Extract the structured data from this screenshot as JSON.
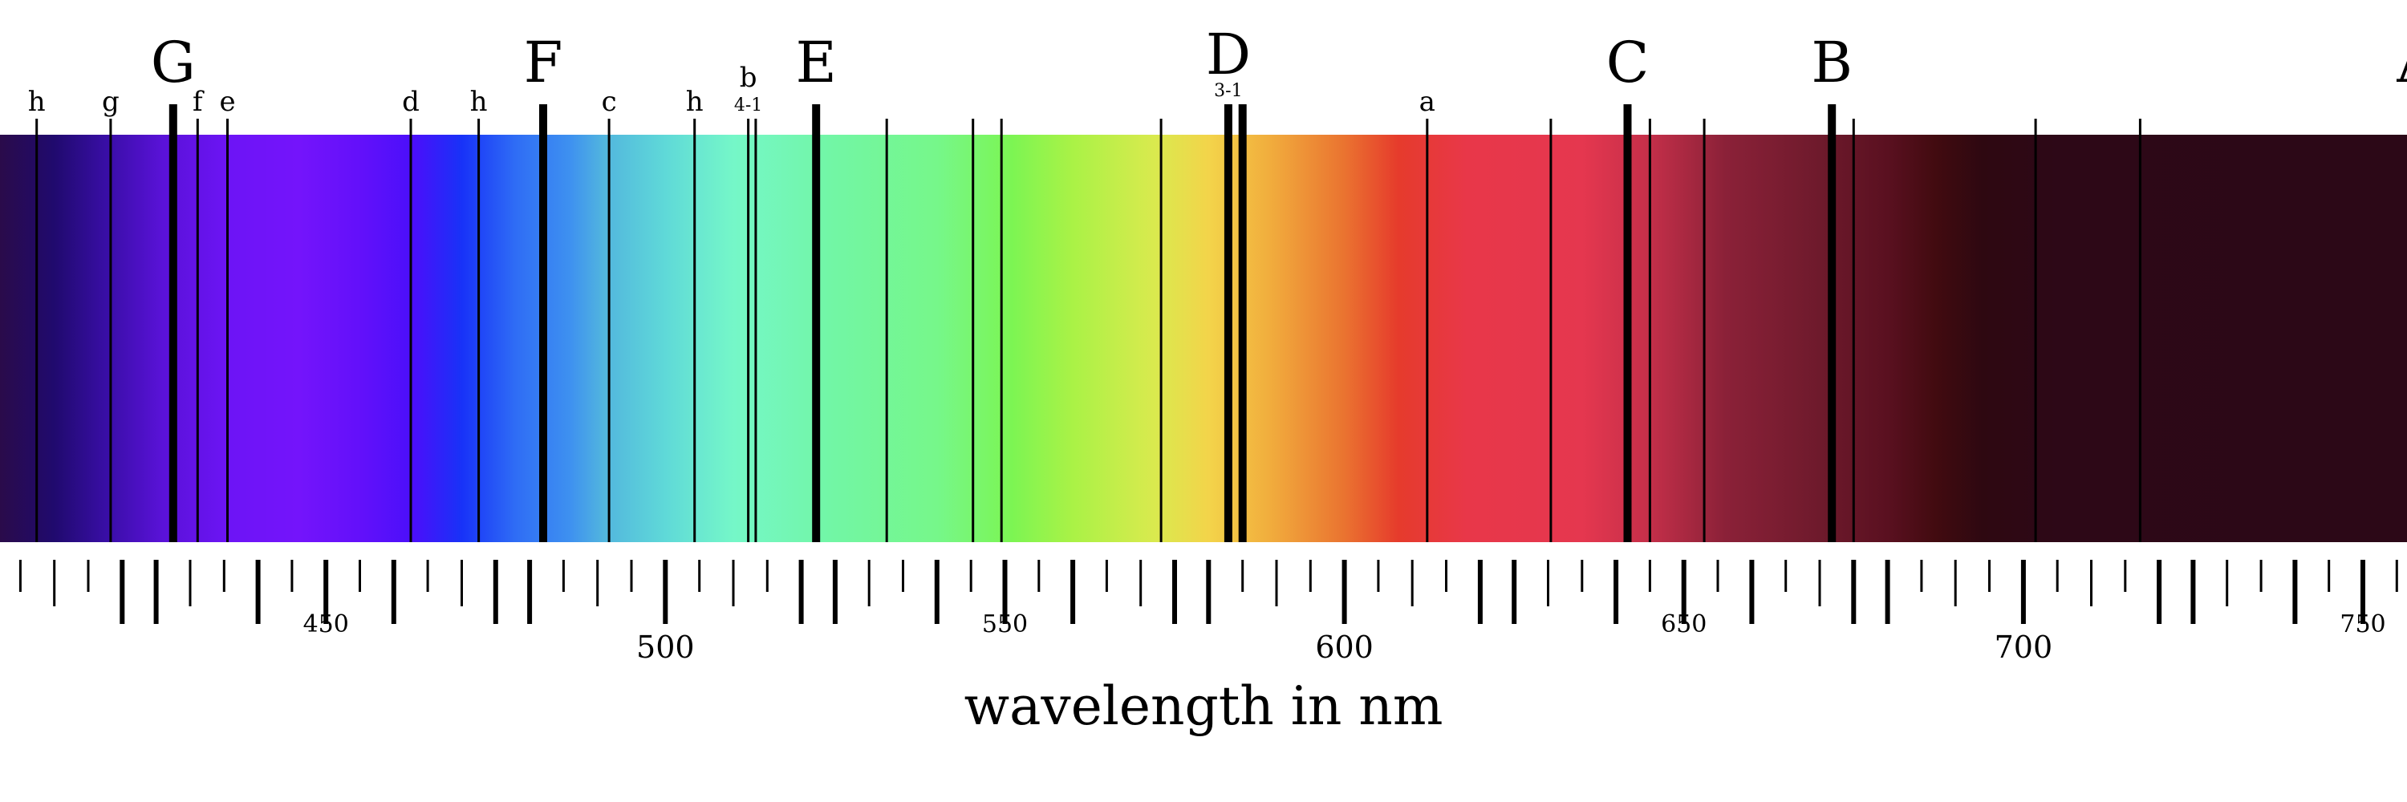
{
  "spectrum": {
    "x_unit": "nm",
    "x_range": [
      402,
      756.5
    ],
    "gradient_stops": [
      {
        "nm": 402,
        "color": "#2a0b4a"
      },
      {
        "nm": 410,
        "color": "#200a6e"
      },
      {
        "nm": 418,
        "color": "#3a0ea8"
      },
      {
        "nm": 426,
        "color": "#5a12d8"
      },
      {
        "nm": 436,
        "color": "#6d14f6"
      },
      {
        "nm": 446,
        "color": "#7414fb"
      },
      {
        "nm": 455,
        "color": "#6310fa"
      },
      {
        "nm": 463,
        "color": "#4a0ffa"
      },
      {
        "nm": 470,
        "color": "#1832f8"
      },
      {
        "nm": 478,
        "color": "#2f6df5"
      },
      {
        "nm": 486,
        "color": "#3e91f0"
      },
      {
        "nm": 491,
        "color": "#52b6de"
      },
      {
        "nm": 500,
        "color": "#5fd9d8"
      },
      {
        "nm": 510,
        "color": "#75f7c8"
      },
      {
        "nm": 525,
        "color": "#72f6a4"
      },
      {
        "nm": 540,
        "color": "#76f78a"
      },
      {
        "nm": 551,
        "color": "#7cf553"
      },
      {
        "nm": 560,
        "color": "#aaf246"
      },
      {
        "nm": 572,
        "color": "#d9ea4e"
      },
      {
        "nm": 580,
        "color": "#f3d44a"
      },
      {
        "nm": 589,
        "color": "#f1ad3d"
      },
      {
        "nm": 600,
        "color": "#ea7330"
      },
      {
        "nm": 608,
        "color": "#e63b2c"
      },
      {
        "nm": 618,
        "color": "#e83749"
      },
      {
        "nm": 635,
        "color": "#e5374f"
      },
      {
        "nm": 645,
        "color": "#c42f49"
      },
      {
        "nm": 656,
        "color": "#8b2138"
      },
      {
        "nm": 670,
        "color": "#6e1a2c"
      },
      {
        "nm": 680,
        "color": "#5a1020"
      },
      {
        "nm": 687,
        "color": "#420b10"
      },
      {
        "nm": 694,
        "color": "#2e0811"
      },
      {
        "nm": 705,
        "color": "#2d0817"
      },
      {
        "nm": 756.5,
        "color": "#2c0817"
      }
    ]
  },
  "lines": [
    {
      "nm": 407.4,
      "weight": "thin",
      "label": "h"
    },
    {
      "nm": 418.3,
      "weight": "thin",
      "label": "g"
    },
    {
      "nm": 427.5,
      "weight": "thick",
      "label": "G",
      "big": true
    },
    {
      "nm": 431.1,
      "weight": "thin",
      "label": "f"
    },
    {
      "nm": 435.5,
      "weight": "thin",
      "label": "e"
    },
    {
      "nm": 462.5,
      "weight": "thin",
      "label": "d"
    },
    {
      "nm": 472.5,
      "weight": "thin",
      "label": "h"
    },
    {
      "nm": 482.0,
      "weight": "thick",
      "label": "F",
      "big": true
    },
    {
      "nm": 491.7,
      "weight": "thin",
      "label": "c"
    },
    {
      "nm": 504.3,
      "weight": "thin",
      "label": "h"
    },
    {
      "nm": 512.2,
      "weight": "thin",
      "label": "b",
      "sub": "4-1"
    },
    {
      "nm": 513.3,
      "weight": "thin"
    },
    {
      "nm": 522.2,
      "weight": "thick",
      "label": "E",
      "big": true
    },
    {
      "nm": 532.6,
      "weight": "thin"
    },
    {
      "nm": 545.3,
      "weight": "thin"
    },
    {
      "nm": 549.5,
      "weight": "thin"
    },
    {
      "nm": 573.0,
      "weight": "thin"
    },
    {
      "nm": 582.9,
      "weight": "thick",
      "label": "D",
      "big": true,
      "sub": "3-1"
    },
    {
      "nm": 585.0,
      "weight": "thick"
    },
    {
      "nm": 612.2,
      "weight": "thin",
      "label": "a"
    },
    {
      "nm": 630.4,
      "weight": "thin"
    },
    {
      "nm": 641.7,
      "weight": "thick",
      "label": "C",
      "big": true
    },
    {
      "nm": 645.0,
      "weight": "thin"
    },
    {
      "nm": 653.0,
      "weight": "thin"
    },
    {
      "nm": 671.8,
      "weight": "thick",
      "label": "B",
      "big": true
    },
    {
      "nm": 675.0,
      "weight": "thin"
    },
    {
      "nm": 701.8,
      "weight": "thin"
    },
    {
      "nm": 717.2,
      "weight": "thin"
    },
    {
      "nm": 758.0,
      "weight": "none",
      "label": "A",
      "big": true
    }
  ],
  "axis": {
    "min": 402,
    "max": 756.5,
    "minor_step": 5,
    "major_labels": [
      {
        "nm": 450,
        "text": "450",
        "size": "small"
      },
      {
        "nm": 500,
        "text": "500",
        "size": "large"
      },
      {
        "nm": 550,
        "text": "550",
        "size": "small"
      },
      {
        "nm": 600,
        "text": "600",
        "size": "large"
      },
      {
        "nm": 650,
        "text": "650",
        "size": "small"
      },
      {
        "nm": 700,
        "text": "700",
        "size": "large"
      },
      {
        "nm": 750,
        "text": "750",
        "size": "small"
      }
    ],
    "title": "wavelength in nm"
  }
}
